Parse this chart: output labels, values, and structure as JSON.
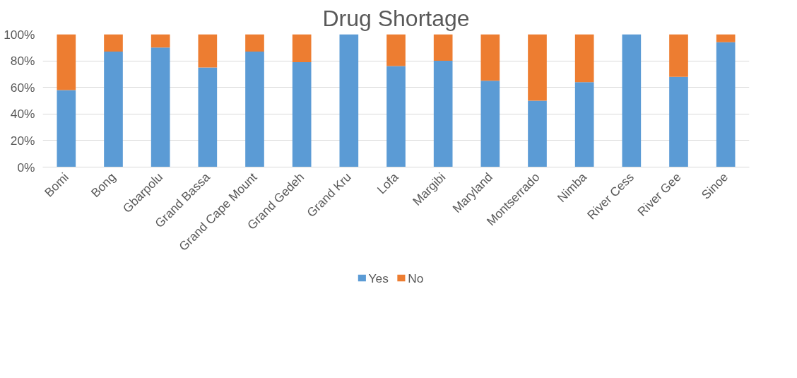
{
  "chart_data": {
    "type": "bar",
    "title": "Drug Shortage",
    "stacked": true,
    "categories": [
      "Bomi",
      "Bong",
      "Gbarpolu",
      "Grand Bassa",
      "Grand Cape Mount",
      "Grand Gedeh",
      "Grand Kru",
      "Lofa",
      "Margibi",
      "Maryland",
      "Montserrado",
      "Nimba",
      "River Cess",
      "River Gee",
      "Sinoe"
    ],
    "series": [
      {
        "name": "Yes",
        "color": "#5b9bd5",
        "values": [
          58,
          87,
          90,
          75,
          87,
          79,
          100,
          76,
          80,
          65,
          50,
          64,
          100,
          68,
          94
        ]
      },
      {
        "name": "No",
        "color": "#ed7d31",
        "values": [
          42,
          13,
          10,
          25,
          13,
          21,
          0,
          24,
          20,
          35,
          50,
          36,
          0,
          32,
          6
        ]
      }
    ],
    "ylim": [
      0,
      100
    ],
    "yticks": [
      {
        "value": 0,
        "label": "0%"
      },
      {
        "value": 20,
        "label": "20%"
      },
      {
        "value": 40,
        "label": "40%"
      },
      {
        "value": 60,
        "label": "60%"
      },
      {
        "value": 80,
        "label": "80%"
      },
      {
        "value": 100,
        "label": "100%"
      }
    ],
    "grid": "y",
    "legend": "bottom"
  }
}
